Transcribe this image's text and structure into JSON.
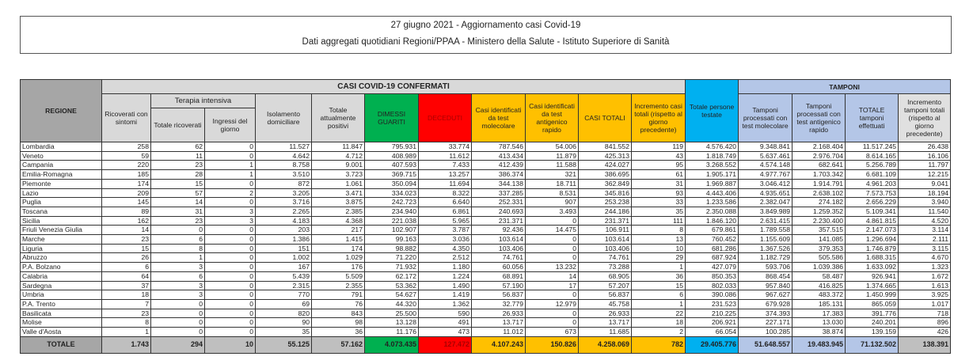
{
  "title": "27 giugno 2021 - Aggiornamento casi Covid-19",
  "subtitle": "Dati aggregati quotidiani Regioni/PPAA - Ministero della Salute - Istituto Superiore di Sanità",
  "headers": {
    "regione": "REGIONE",
    "casi_group": "CASI COVID-19 CONFERMATI",
    "tamponi_group": "TAMPONI",
    "terapia_group": "Terapia intensiva",
    "ricoverati": "Ricoverati con sintomi",
    "totale_ricoverati": "Totale ricoverati",
    "ingressi": "Ingressi del giorno",
    "isolamento": "Isolamento domiciliare",
    "totale_positivi": "Totale attualmente positivi",
    "dimessi": "DIMESSI GUARITI",
    "deceduti": "DECEDUTI",
    "casi_molecolare": "Casi identificati da test molecolare",
    "casi_antigenico": "Casi identificati da test antigenico rapido",
    "casi_totali": "CASI TOTALI",
    "incremento_casi": "Incremento casi totali (rispetto al giorno precedente)",
    "persone_testate": "Totale persone testate",
    "tamponi_molecolare": "Tamponi processati con test molecolare",
    "tamponi_antigenico": "Tamponi processati con test antigenico rapido",
    "totale_tamponi": "TOTALE tamponi effettuati",
    "incremento_tamponi": "Incremento tamponi totali (rispetto al giorno precedente)"
  },
  "colors": {
    "dimessi": "#00b050",
    "deceduti": "#ff0000",
    "casi": "#ffc000",
    "persone": "#00b0f0",
    "tamponi": "#b4c6e7"
  },
  "rows": [
    [
      "Lombardia",
      "258",
      "62",
      "0",
      "11.527",
      "11.847",
      "795.931",
      "33.774",
      "787.546",
      "54.006",
      "841.552",
      "119",
      "4.576.420",
      "9.348.841",
      "2.168.404",
      "11.517.245",
      "26.438"
    ],
    [
      "Veneto",
      "59",
      "11",
      "0",
      "4.642",
      "4.712",
      "408.989",
      "11.612",
      "413.434",
      "11.879",
      "425.313",
      "43",
      "1.818.749",
      "5.637.461",
      "2.976.704",
      "8.614.165",
      "16.106"
    ],
    [
      "Campania",
      "220",
      "23",
      "1",
      "8.758",
      "9.001",
      "407.593",
      "7.433",
      "412.439",
      "11.588",
      "424.027",
      "95",
      "3.268.552",
      "4.574.148",
      "682.641",
      "5.256.789",
      "11.797"
    ],
    [
      "Emilia-Romagna",
      "185",
      "28",
      "1",
      "3.510",
      "3.723",
      "369.715",
      "13.257",
      "386.374",
      "321",
      "386.695",
      "61",
      "1.905.171",
      "4.977.767",
      "1.703.342",
      "6.681.109",
      "12.215"
    ],
    [
      "Piemonte",
      "174",
      "15",
      "0",
      "872",
      "1.061",
      "350.094",
      "11.694",
      "344.138",
      "18.711",
      "362.849",
      "31",
      "1.969.887",
      "3.046.412",
      "1.914.791",
      "4.961.203",
      "9.041"
    ],
    [
      "Lazio",
      "209",
      "57",
      "2",
      "3.205",
      "3.471",
      "334.023",
      "8.322",
      "337.285",
      "8.531",
      "345.816",
      "93",
      "4.443.406",
      "4.935.651",
      "2.638.102",
      "7.573.753",
      "18.194"
    ],
    [
      "Puglia",
      "145",
      "14",
      "0",
      "3.716",
      "3.875",
      "242.723",
      "6.640",
      "252.331",
      "907",
      "253.238",
      "33",
      "1.233.586",
      "2.382.047",
      "274.182",
      "2.656.229",
      "3.940"
    ],
    [
      "Toscana",
      "89",
      "31",
      "3",
      "2.265",
      "2.385",
      "234.940",
      "6.861",
      "240.693",
      "3.493",
      "244.186",
      "35",
      "2.350.088",
      "3.849.989",
      "1.259.352",
      "5.109.341",
      "11.540"
    ],
    [
      "Sicilia",
      "162",
      "23",
      "3",
      "4.183",
      "4.368",
      "221.038",
      "5.965",
      "231.371",
      "0",
      "231.371",
      "111",
      "1.846.120",
      "2.631.415",
      "2.230.400",
      "4.861.815",
      "4.520"
    ],
    [
      "Friuli Venezia Giulia",
      "14",
      "0",
      "0",
      "203",
      "217",
      "102.907",
      "3.787",
      "92.436",
      "14.475",
      "106.911",
      "8",
      "679.861",
      "1.789.558",
      "357.515",
      "2.147.073",
      "3.114"
    ],
    [
      "Marche",
      "23",
      "6",
      "0",
      "1.386",
      "1.415",
      "99.163",
      "3.036",
      "103.614",
      "0",
      "103.614",
      "13",
      "760.452",
      "1.155.609",
      "141.085",
      "1.296.694",
      "2.111"
    ],
    [
      "Liguria",
      "15",
      "8",
      "0",
      "151",
      "174",
      "98.882",
      "4.350",
      "103.406",
      "0",
      "103.406",
      "10",
      "681.286",
      "1.367.526",
      "379.353",
      "1.746.879",
      "3.115"
    ],
    [
      "Abruzzo",
      "26",
      "1",
      "0",
      "1.002",
      "1.029",
      "71.220",
      "2.512",
      "74.761",
      "0",
      "74.761",
      "29",
      "687.924",
      "1.182.729",
      "505.586",
      "1.688.315",
      "4.670"
    ],
    [
      "P.A. Bolzano",
      "6",
      "3",
      "0",
      "167",
      "176",
      "71.932",
      "1.180",
      "60.056",
      "13.232",
      "73.288",
      "1",
      "427.079",
      "593.706",
      "1.039.386",
      "1.633.092",
      "1.323"
    ],
    [
      "Calabria",
      "64",
      "6",
      "0",
      "5.439",
      "5.509",
      "62.172",
      "1.224",
      "68.891",
      "14",
      "68.905",
      "36",
      "850.353",
      "868.454",
      "58.487",
      "926.941",
      "1.672"
    ],
    [
      "Sardegna",
      "37",
      "3",
      "0",
      "2.315",
      "2.355",
      "53.362",
      "1.490",
      "57.190",
      "17",
      "57.207",
      "15",
      "802.033",
      "957.840",
      "416.825",
      "1.374.665",
      "1.613"
    ],
    [
      "Umbria",
      "18",
      "3",
      "0",
      "770",
      "791",
      "54.627",
      "1.419",
      "56.837",
      "0",
      "56.837",
      "6",
      "390.086",
      "967.627",
      "483.372",
      "1.450.999",
      "3.925"
    ],
    [
      "P.A. Trento",
      "7",
      "0",
      "0",
      "69",
      "76",
      "44.320",
      "1.362",
      "32.779",
      "12.979",
      "45.758",
      "1",
      "231.523",
      "679.928",
      "185.131",
      "865.059",
      "1.017"
    ],
    [
      "Basilicata",
      "23",
      "0",
      "0",
      "820",
      "843",
      "25.500",
      "590",
      "26.933",
      "0",
      "26.933",
      "22",
      "210.225",
      "374.393",
      "17.383",
      "391.776",
      "718"
    ],
    [
      "Molise",
      "8",
      "0",
      "0",
      "90",
      "98",
      "13.128",
      "491",
      "13.717",
      "0",
      "13.717",
      "18",
      "206.921",
      "227.171",
      "13.030",
      "240.201",
      "896"
    ],
    [
      "Valle d'Aosta",
      "1",
      "0",
      "0",
      "35",
      "36",
      "11.176",
      "473",
      "11.012",
      "673",
      "11.685",
      "2",
      "66.054",
      "100.285",
      "38.874",
      "139.159",
      "426"
    ]
  ],
  "totals": [
    "TOTALE",
    "1.743",
    "294",
    "10",
    "55.125",
    "57.162",
    "4.073.435",
    "127.472",
    "4.107.243",
    "150.826",
    "4.258.069",
    "782",
    "29.405.776",
    "51.648.557",
    "19.483.945",
    "71.132.502",
    "138.391"
  ]
}
